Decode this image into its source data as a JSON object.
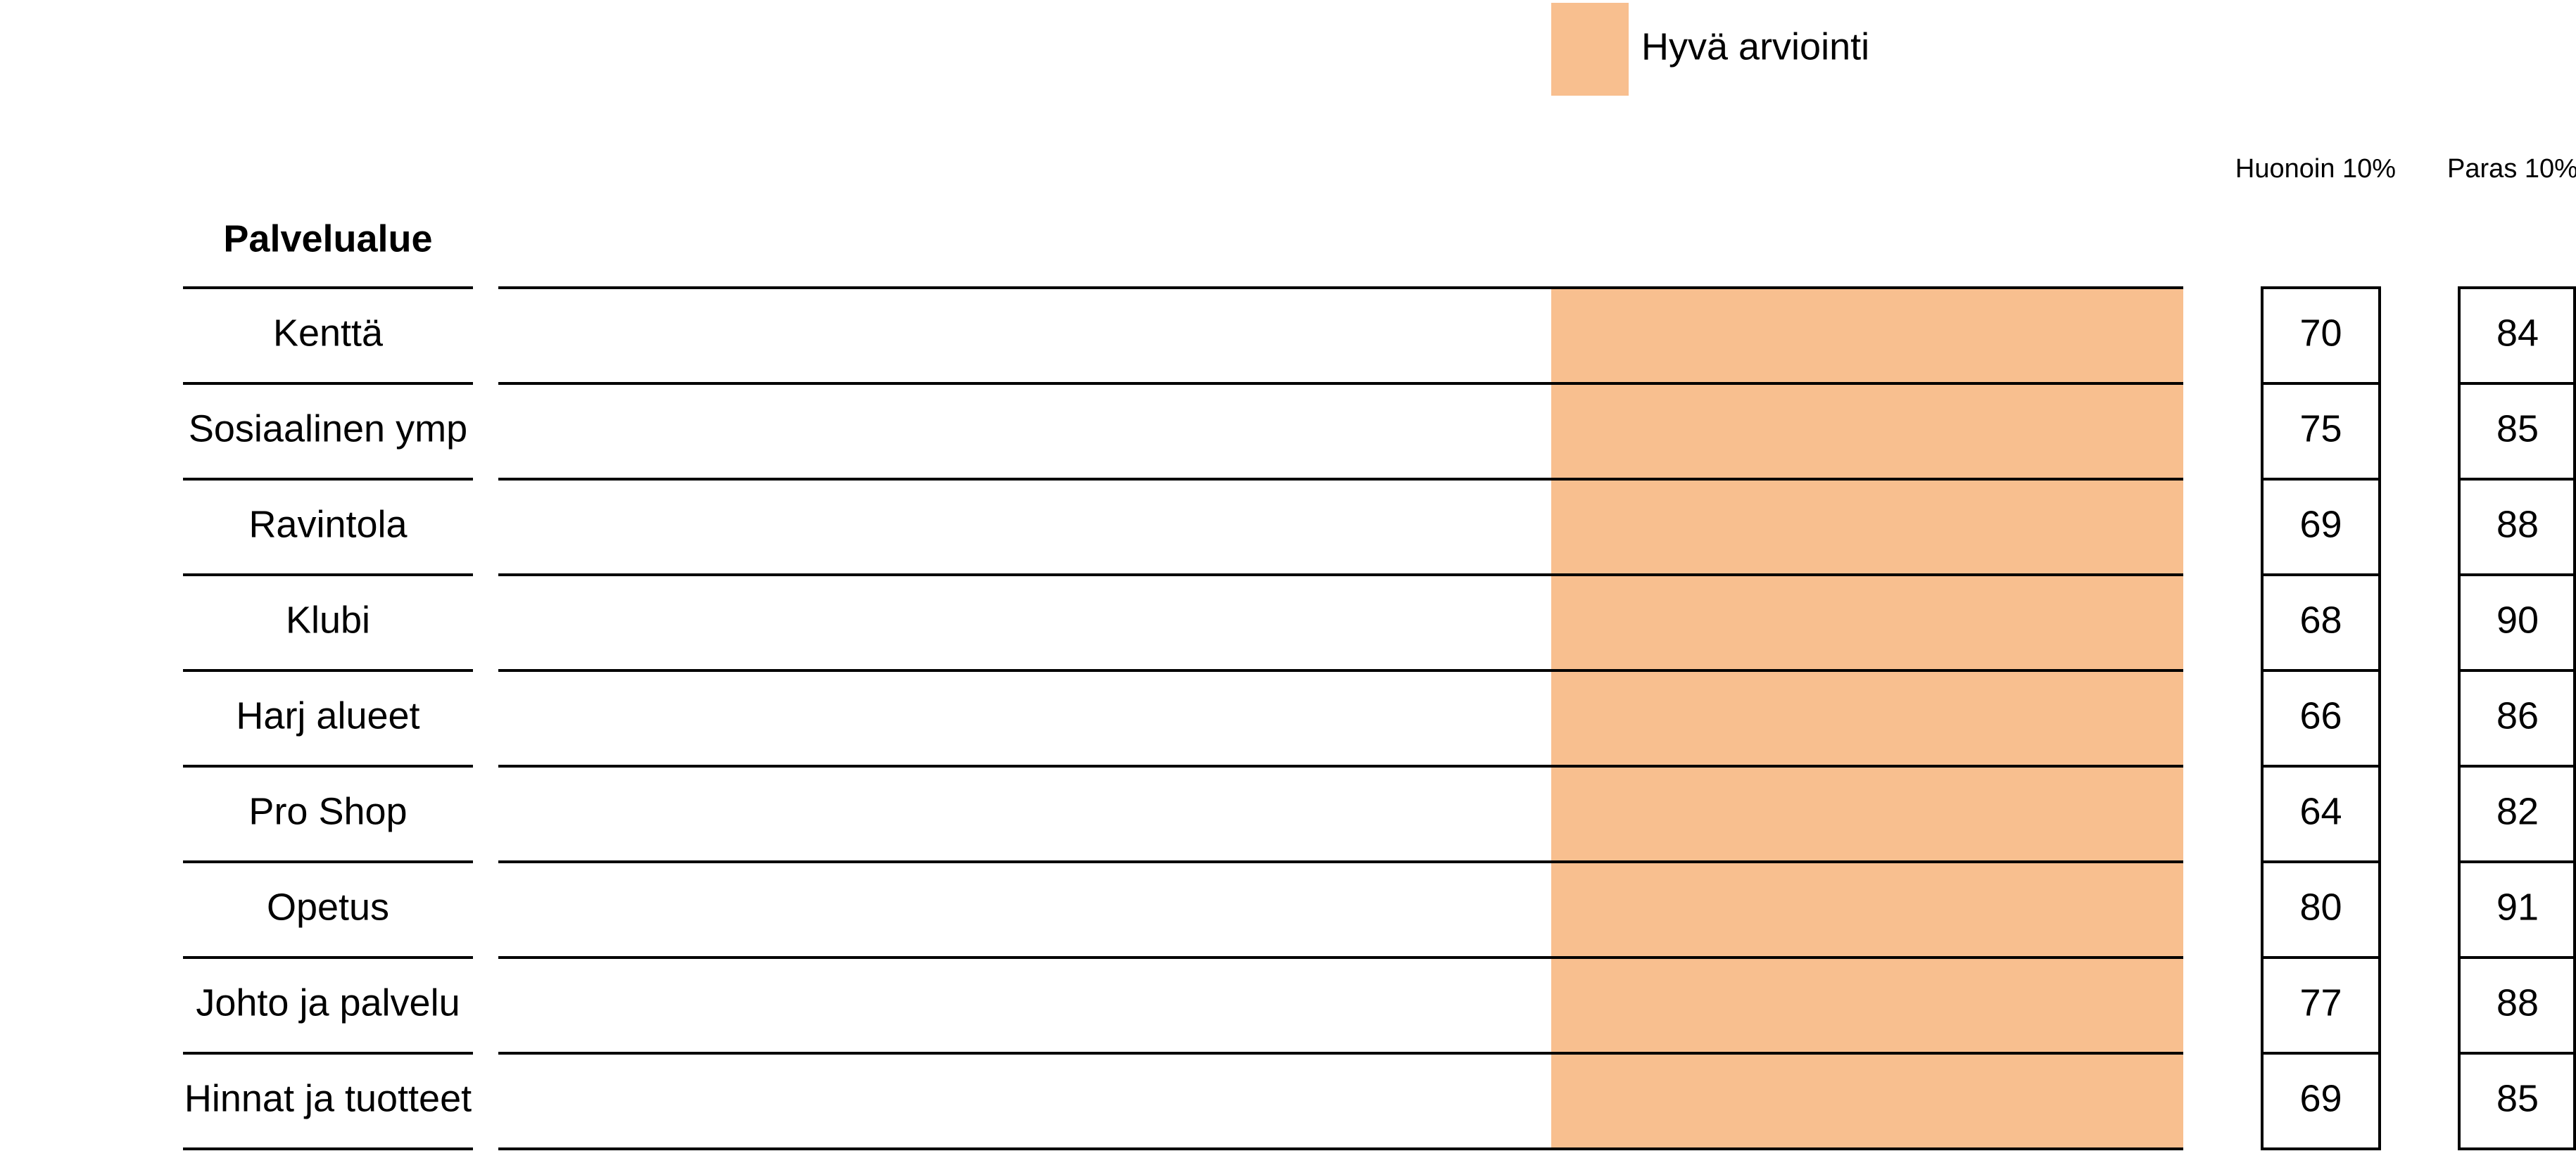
{
  "chart_data": {
    "type": "table",
    "legend": {
      "label": "Hyvä arviointi",
      "color": "#F8BF8F"
    },
    "row_header": "Palvelualue",
    "column_headers": [
      "Huonoin 10%",
      "Paras 10%"
    ],
    "band_color": "#F8BF8F",
    "rows": [
      {
        "name": "Kenttä",
        "worst": 70,
        "best": 84
      },
      {
        "name": "Sosiaalinen ymp",
        "worst": 75,
        "best": 85
      },
      {
        "name": "Ravintola",
        "worst": 69,
        "best": 88
      },
      {
        "name": "Klubi",
        "worst": 68,
        "best": 90
      },
      {
        "name": "Harj alueet",
        "worst": 66,
        "best": 86
      },
      {
        "name": "Pro Shop",
        "worst": 64,
        "best": 82
      },
      {
        "name": "Opetus",
        "worst": 80,
        "best": 91
      },
      {
        "name": "Johto ja palvelu",
        "worst": 77,
        "best": 88
      },
      {
        "name": "Hinnat ja tuotteet",
        "worst": 69,
        "best": 85
      }
    ]
  }
}
